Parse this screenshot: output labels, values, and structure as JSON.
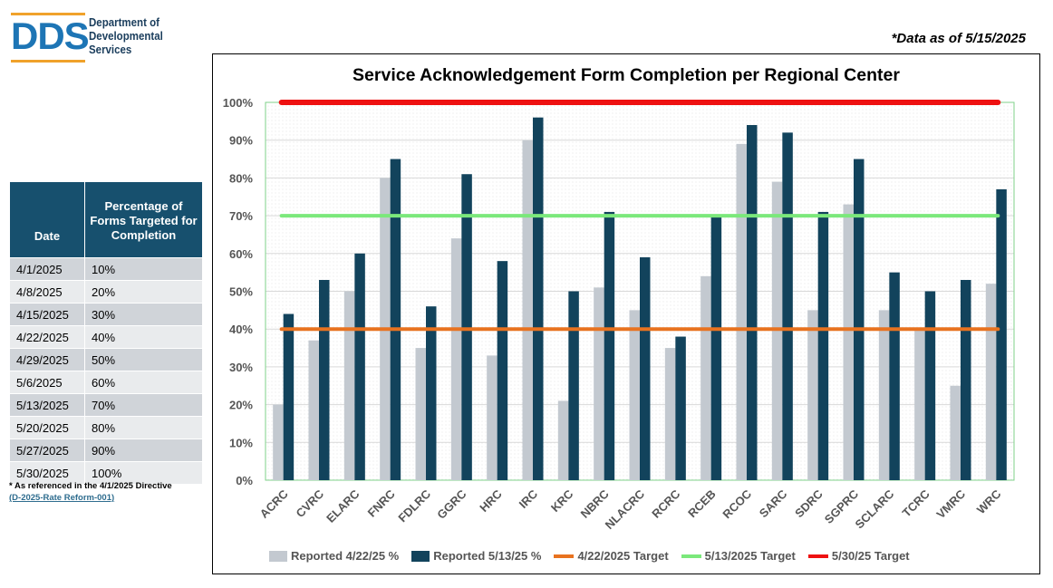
{
  "logo": {
    "mark": "DDS",
    "line1": "Department of",
    "line2": "Developmental",
    "line3": "Services"
  },
  "data_asof": "*Data as of 5/15/2025",
  "schedule_table": {
    "headers": [
      "Date",
      "Percentage of Forms Targeted for Completion"
    ],
    "rows": [
      [
        "4/1/2025",
        "10%"
      ],
      [
        "4/8/2025",
        "20%"
      ],
      [
        "4/15/2025",
        "30%"
      ],
      [
        "4/22/2025",
        "40%"
      ],
      [
        "4/29/2025",
        "50%"
      ],
      [
        "5/6/2025",
        "60%"
      ],
      [
        "5/13/2025",
        "70%"
      ],
      [
        "5/20/2025",
        "80%"
      ],
      [
        "5/27/2025",
        "90%"
      ],
      [
        "5/30/2025",
        "100%"
      ]
    ]
  },
  "footnote": {
    "text": "* As referenced in the 4/1/2025 Directive",
    "link": "(D-2025-Rate Reform-001)"
  },
  "colors": {
    "reported_422": "#c3c9d0",
    "reported_513": "#12435c",
    "target_422": "#e8721f",
    "target_513": "#7be87b",
    "target_530": "#ee1111",
    "header_bg": "#17506e",
    "logo_blue": "#1d75b5",
    "logo_orange": "#f0a22b"
  },
  "chart_data": {
    "type": "bar",
    "title": "Service Acknowledgement Form Completion per Regional Center",
    "categories": [
      "ACRC",
      "CVRC",
      "ELARC",
      "FNRC",
      "FDLRC",
      "GGRC",
      "HRC",
      "IRC",
      "KRC",
      "NBRC",
      "NLACRC",
      "RCRC",
      "RCEB",
      "RCOC",
      "SARC",
      "SDRC",
      "SGPRC",
      "SCLARC",
      "TCRC",
      "VMRC",
      "WRC"
    ],
    "series": [
      {
        "name": "Reported 4/22/25 %",
        "values": [
          20,
          37,
          50,
          80,
          35,
          64,
          33,
          90,
          21,
          51,
          45,
          35,
          54,
          89,
          79,
          45,
          73,
          45,
          40,
          25,
          52
        ]
      },
      {
        "name": "Reported 5/13/25 %",
        "values": [
          44,
          53,
          60,
          85,
          46,
          81,
          58,
          96,
          50,
          71,
          59,
          38,
          70,
          94,
          92,
          71,
          85,
          55,
          50,
          53,
          77
        ]
      }
    ],
    "target_lines": [
      {
        "name": "4/22/2025 Target",
        "value": 40
      },
      {
        "name": "5/13/2025 Target",
        "value": 70
      },
      {
        "name": "5/30/25 Target",
        "value": 100
      }
    ],
    "ylim": [
      0,
      100
    ],
    "yticks": [
      "0%",
      "10%",
      "20%",
      "30%",
      "40%",
      "50%",
      "60%",
      "70%",
      "80%",
      "90%",
      "100%"
    ],
    "grid": true,
    "legend_position": "bottom"
  }
}
